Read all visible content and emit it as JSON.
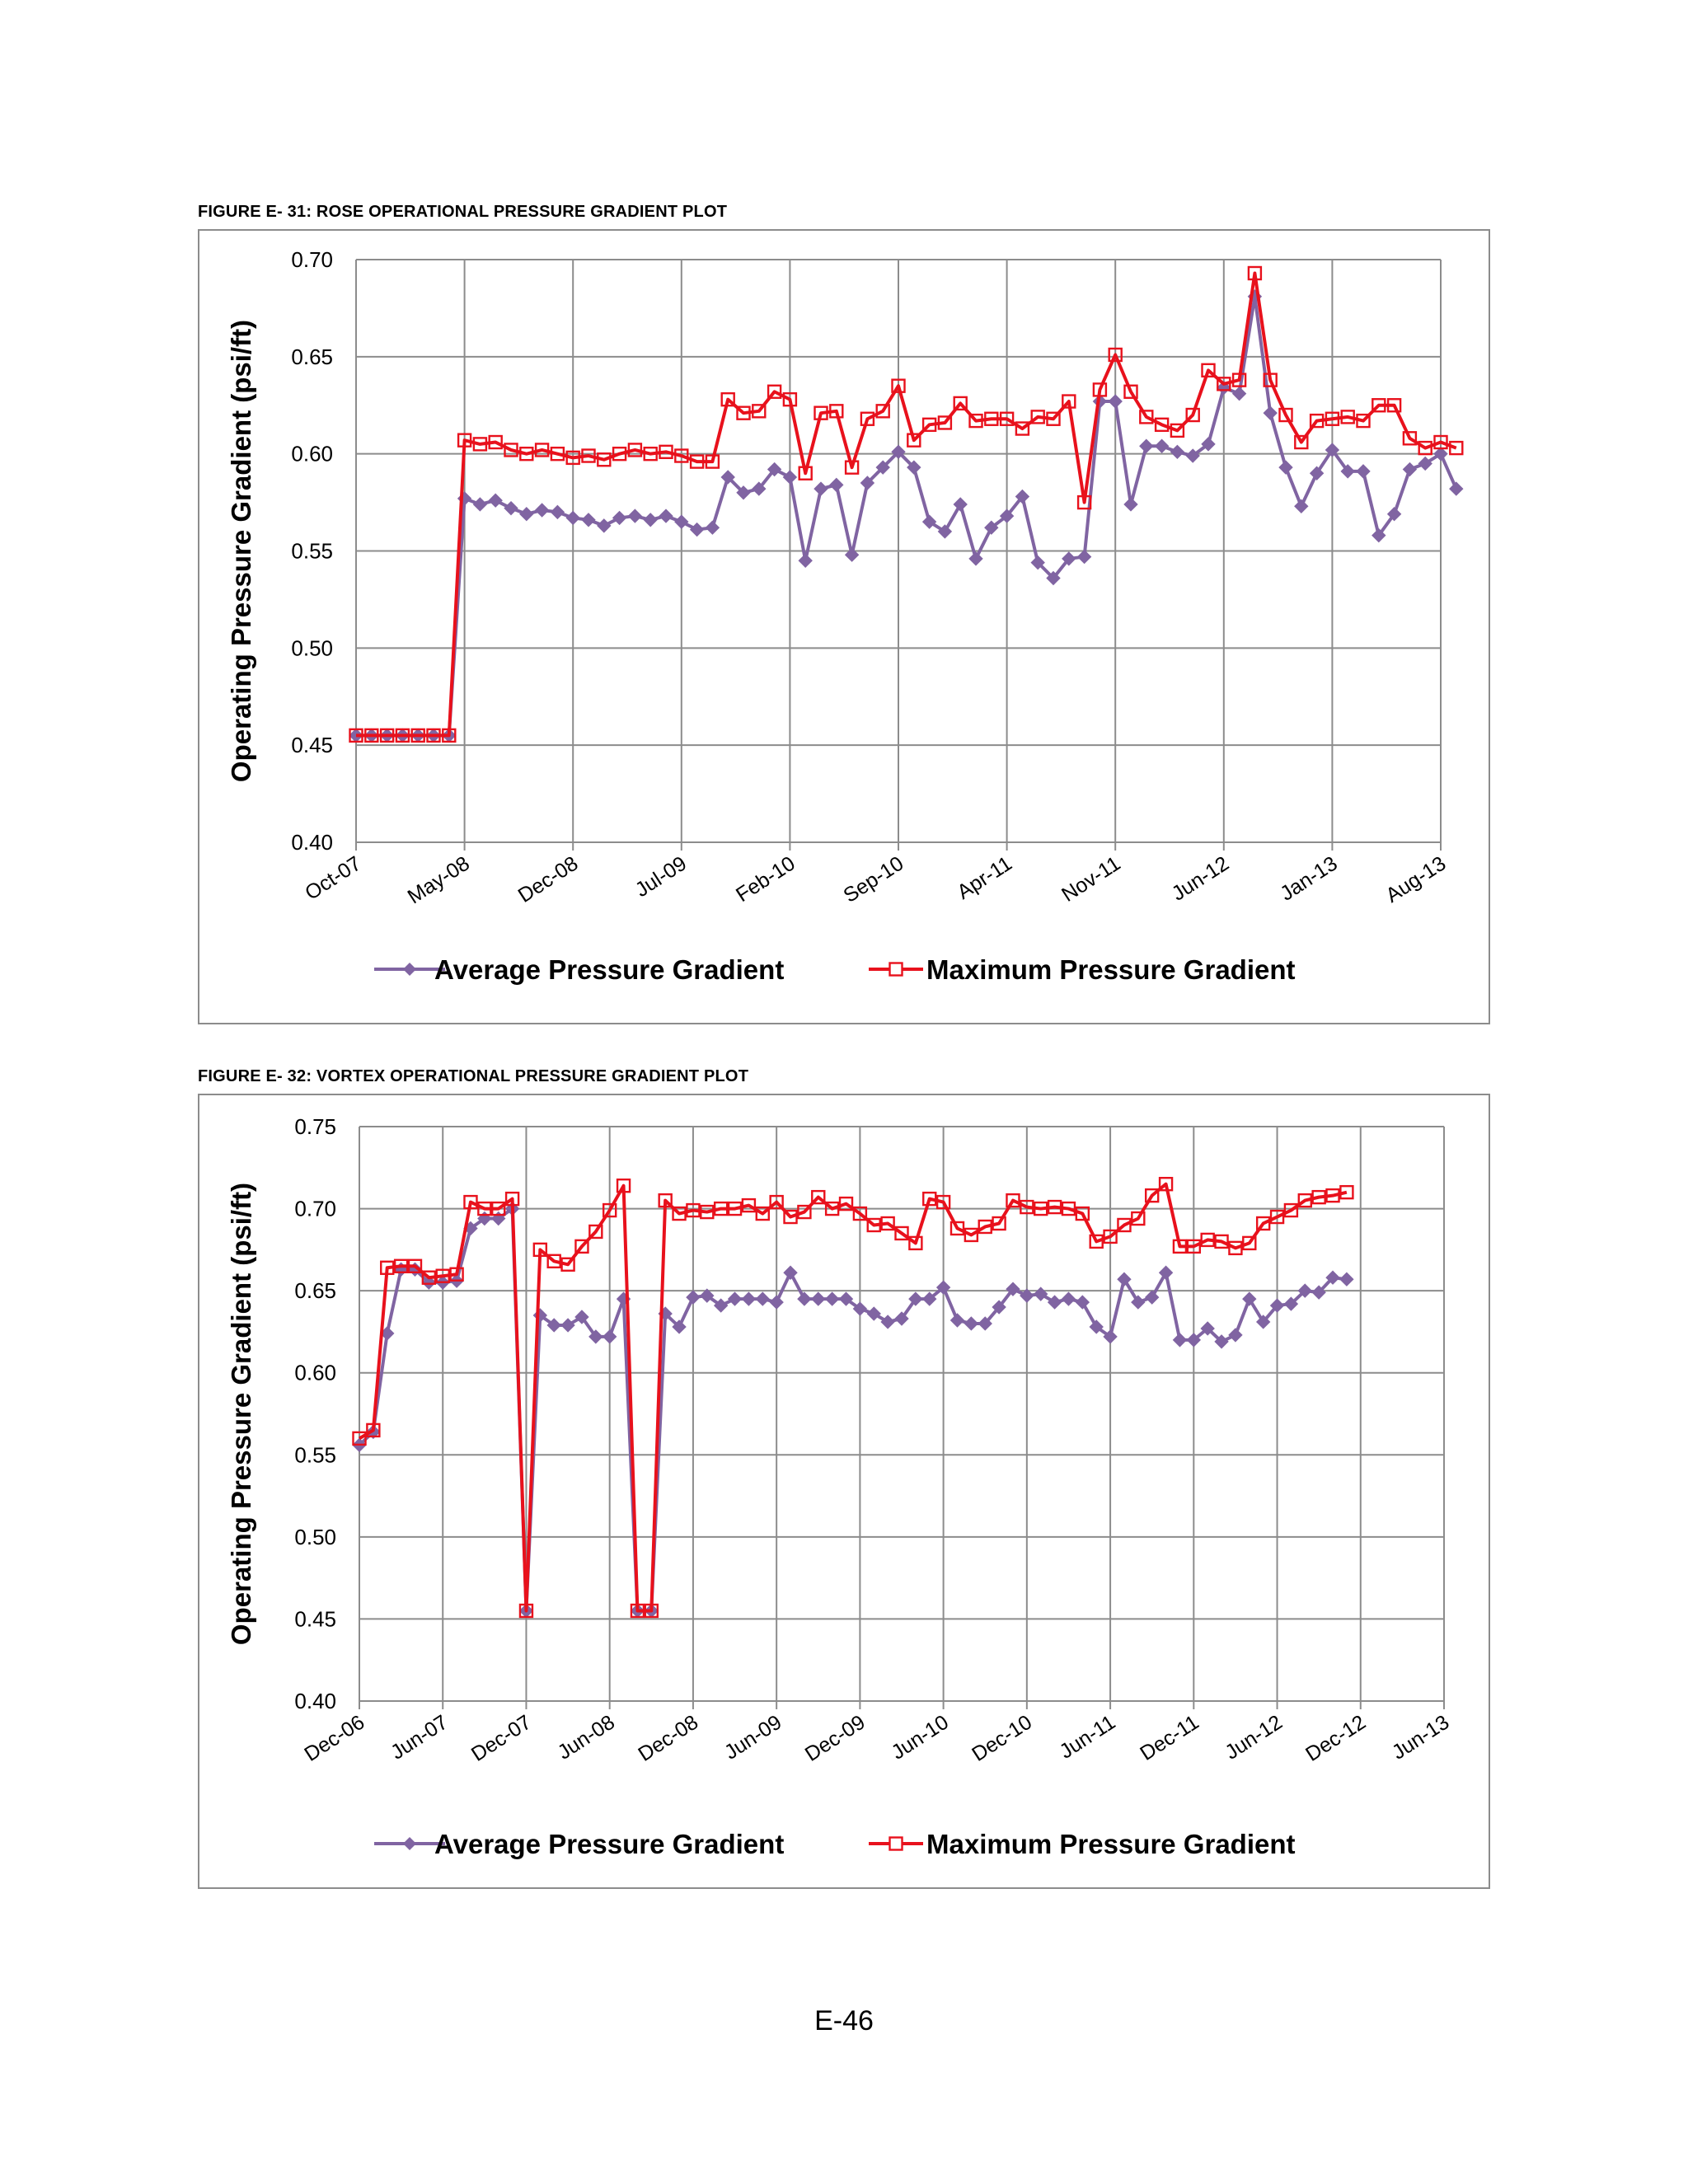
{
  "page": {
    "page_number": "E-46"
  },
  "colors": {
    "average": "#8064a2",
    "maximum": "#e8111c",
    "grid": "#8c8c8c"
  },
  "chart_data": [
    {
      "caption": "FIGURE E- 31:  ROSE OPERATIONAL PRESSURE GRADIENT PLOT",
      "type": "line",
      "ylabel": "Operating Pressure Gradient (psi/ft)",
      "xlabel": "",
      "x_tick_labels": [
        "Oct-07",
        "May-08",
        "Dec-08",
        "Jul-09",
        "Feb-10",
        "Sep-10",
        "Apr-11",
        "Nov-11",
        "Jun-12",
        "Jan-13",
        "Aug-13"
      ],
      "x_tick_index": [
        0,
        7,
        14,
        21,
        28,
        35,
        42,
        49,
        56,
        63,
        70
      ],
      "y_ticks": [
        "0.40",
        "0.45",
        "0.50",
        "0.55",
        "0.60",
        "0.65",
        "0.70"
      ],
      "ylim": [
        0.4,
        0.7
      ],
      "grid": true,
      "legend_position": "bottom",
      "series": [
        {
          "name": "Average Pressure Gradient",
          "marker": "diamond",
          "start_index": 0,
          "values": [
            0.455,
            0.455,
            0.455,
            0.455,
            0.455,
            0.455,
            0.455,
            0.577,
            0.574,
            0.576,
            0.572,
            0.569,
            0.571,
            0.57,
            0.567,
            0.566,
            0.563,
            0.567,
            0.568,
            0.566,
            0.568,
            0.565,
            0.561,
            0.562,
            0.588,
            0.58,
            0.582,
            0.592,
            0.588,
            0.545,
            0.582,
            0.584,
            0.548,
            0.585,
            0.593,
            0.601,
            0.593,
            0.565,
            0.56,
            0.574,
            0.546,
            0.562,
            0.568,
            0.578,
            0.544,
            0.536,
            0.546,
            0.547,
            0.627,
            0.627,
            0.574,
            0.604,
            0.604,
            0.601,
            0.599,
            0.605,
            0.634,
            0.631,
            0.681,
            0.621,
            0.593,
            0.573,
            0.59,
            0.602,
            0.591,
            0.591,
            0.558,
            0.569,
            0.592,
            0.595,
            0.6,
            0.582
          ]
        },
        {
          "name": "Maximum Pressure Gradient",
          "marker": "square-open",
          "start_index": 0,
          "values": [
            0.455,
            0.455,
            0.455,
            0.455,
            0.455,
            0.455,
            0.455,
            0.607,
            0.605,
            0.606,
            0.602,
            0.6,
            0.602,
            0.6,
            0.598,
            0.599,
            0.597,
            0.6,
            0.602,
            0.6,
            0.601,
            0.599,
            0.596,
            0.596,
            0.628,
            0.621,
            0.622,
            0.632,
            0.628,
            0.59,
            0.621,
            0.622,
            0.593,
            0.618,
            0.622,
            0.635,
            0.607,
            0.615,
            0.616,
            0.626,
            0.617,
            0.618,
            0.618,
            0.613,
            0.619,
            0.618,
            0.627,
            0.575,
            0.633,
            0.651,
            0.632,
            0.619,
            0.615,
            0.612,
            0.62,
            0.643,
            0.636,
            0.638,
            0.693,
            0.638,
            0.62,
            0.606,
            0.617,
            0.618,
            0.619,
            0.617,
            0.625,
            0.625,
            0.608,
            0.603,
            0.606,
            0.603
          ]
        }
      ]
    },
    {
      "caption": "FIGURE E- 32:  VORTEX OPERATIONAL PRESSURE GRADIENT PLOT",
      "type": "line",
      "ylabel": "Operating Pressure Gradient (psi/ft)",
      "xlabel": "",
      "x_tick_labels": [
        "Dec-06",
        "Jun-07",
        "Dec-07",
        "Jun-08",
        "Dec-08",
        "Jun-09",
        "Dec-09",
        "Jun-10",
        "Dec-10",
        "Jun-11",
        "Dec-11",
        "Jun-12",
        "Dec-12",
        "Jun-13"
      ],
      "x_tick_index": [
        0,
        6,
        12,
        18,
        24,
        30,
        36,
        42,
        48,
        54,
        60,
        66,
        72,
        78
      ],
      "y_ticks": [
        "0.40",
        "0.45",
        "0.50",
        "0.55",
        "0.60",
        "0.65",
        "0.70",
        "0.75"
      ],
      "ylim": [
        0.4,
        0.75
      ],
      "grid": true,
      "legend_position": "bottom",
      "series": [
        {
          "name": "Average Pressure Gradient",
          "marker": "diamond",
          "start_index": 0,
          "values": [
            0.556,
            0.564,
            0.624,
            0.663,
            0.663,
            0.655,
            0.655,
            0.656,
            0.688,
            0.694,
            0.694,
            0.7,
            0.455,
            0.635,
            0.629,
            0.629,
            0.634,
            0.622,
            0.622,
            0.645,
            0.455,
            0.455,
            0.636,
            0.628,
            0.646,
            0.647,
            0.641,
            0.645,
            0.645,
            0.645,
            0.643,
            0.661,
            0.645,
            0.645,
            0.645,
            0.645,
            0.639,
            0.636,
            0.631,
            0.633,
            0.645,
            0.645,
            0.652,
            0.632,
            0.63,
            0.63,
            0.64,
            0.651,
            0.647,
            0.648,
            0.643,
            0.645,
            0.643,
            0.628,
            0.622,
            0.657,
            0.643,
            0.646,
            0.661,
            0.62,
            0.62,
            0.627,
            0.619,
            0.623,
            0.645,
            0.631,
            0.641,
            0.642,
            0.65,
            0.649,
            0.658,
            0.657
          ]
        },
        {
          "name": "Maximum Pressure Gradient",
          "marker": "square-open",
          "start_index": 0,
          "values": [
            0.56,
            0.565,
            0.664,
            0.665,
            0.665,
            0.658,
            0.659,
            0.66,
            0.704,
            0.7,
            0.7,
            0.706,
            0.455,
            0.675,
            0.668,
            0.666,
            0.677,
            0.686,
            0.699,
            0.714,
            0.455,
            0.455,
            0.705,
            0.697,
            0.699,
            0.698,
            0.7,
            0.7,
            0.702,
            0.697,
            0.704,
            0.695,
            0.698,
            0.707,
            0.7,
            0.703,
            0.697,
            0.69,
            0.691,
            0.685,
            0.679,
            0.706,
            0.704,
            0.688,
            0.684,
            0.689,
            0.691,
            0.705,
            0.701,
            0.7,
            0.701,
            0.7,
            0.697,
            0.68,
            0.683,
            0.69,
            0.694,
            0.708,
            0.715,
            0.677,
            0.677,
            0.681,
            0.68,
            0.676,
            0.679,
            0.691,
            0.695,
            0.699,
            0.705,
            0.707,
            0.708,
            0.71
          ]
        }
      ]
    }
  ]
}
